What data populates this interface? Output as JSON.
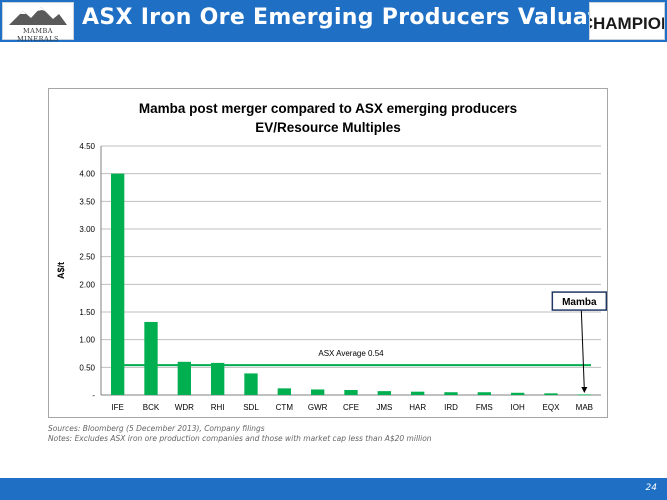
{
  "header": {
    "title": "ASX Iron Ore Emerging Producers Valuation",
    "logo_left_text": "MAMBA MINERALS",
    "logo_right_text": "CHAMPION"
  },
  "colors": {
    "header_blue": "#1f6fc4",
    "bar_green": "#00b050",
    "average_line": "#00b050",
    "callout_border": "#1f3864"
  },
  "chart_data": {
    "type": "bar",
    "title": "Mamba post merger compared to ASX emerging producers",
    "subtitle": "EV/Resource Multiples",
    "ylabel": "A$/t",
    "xlabel": "",
    "ylim": [
      0,
      4.5
    ],
    "yticks": [
      0,
      0.5,
      1.0,
      1.5,
      2.0,
      2.5,
      3.0,
      3.5,
      4.0,
      4.5
    ],
    "ytick_labels": [
      "-",
      "0.50",
      "1.00",
      "1.50",
      "2.00",
      "2.50",
      "3.00",
      "3.50",
      "4.00",
      "4.50"
    ],
    "grid": true,
    "categories": [
      "IFE",
      "BCK",
      "WDR",
      "RHI",
      "SDL",
      "CTM",
      "GWR",
      "CFE",
      "JMS",
      "HAR",
      "IRD",
      "FMS",
      "IOH",
      "EQX",
      "MAB"
    ],
    "values": [
      4.0,
      1.32,
      0.6,
      0.58,
      0.39,
      0.12,
      0.1,
      0.09,
      0.07,
      0.06,
      0.05,
      0.05,
      0.04,
      0.03,
      0.01
    ],
    "average": {
      "label": "ASX Average 0.54",
      "value": 0.54
    },
    "callout": {
      "label": "Mamba",
      "target_category": "MAB"
    }
  },
  "notes": {
    "sources": "Sources: Bloomberg (5 December 2013), Company filings",
    "notes": "Notes: Excludes ASX iron ore production companies and those with market cap less than A$20 million"
  },
  "footer": {
    "page_number": "24"
  }
}
